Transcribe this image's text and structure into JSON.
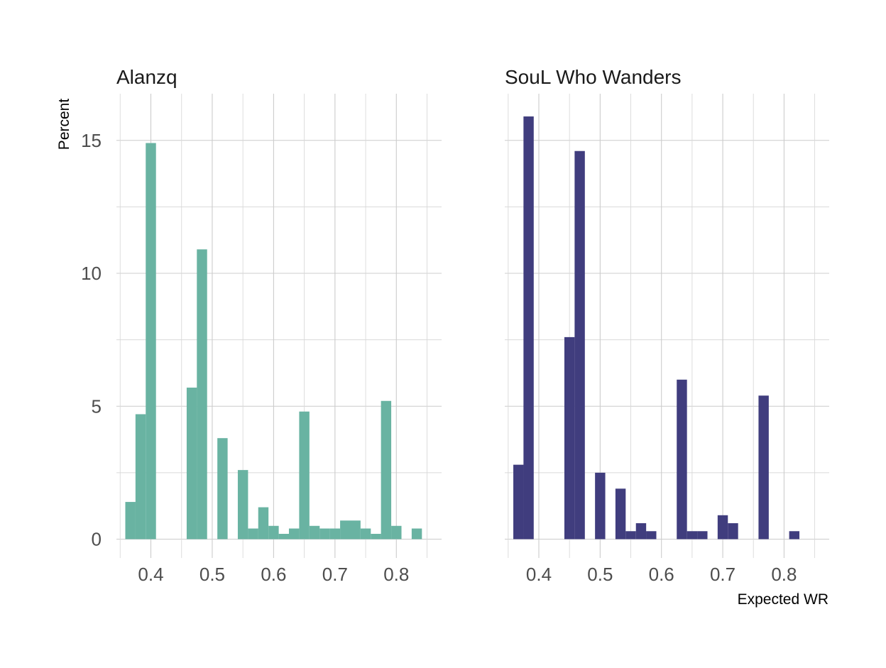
{
  "chart_data": {
    "type": "bar",
    "subtype": "faceted-histogram",
    "xlabel": "Expected WR",
    "ylabel": "Percent",
    "xlim": [
      0.35,
      0.85
    ],
    "ylim": [
      0,
      16
    ],
    "x_ticks": [
      0.4,
      0.5,
      0.6,
      0.7,
      0.8
    ],
    "x_tick_labels": [
      "0.4",
      "0.5",
      "0.6",
      "0.7",
      "0.8"
    ],
    "y_ticks": [
      0,
      5,
      10,
      15
    ],
    "y_tick_labels": [
      "0",
      "5",
      "10",
      "15"
    ],
    "bin_width": 0.0167,
    "grid": true,
    "panels": [
      {
        "title": "Alanzq",
        "color": "#69b3a2",
        "bin_centers": [
          0.3667,
          0.3833,
          0.4,
          0.4167,
          0.4333,
          0.45,
          0.4667,
          0.4833,
          0.5,
          0.5167,
          0.5333,
          0.55,
          0.5667,
          0.5833,
          0.6,
          0.6167,
          0.6333,
          0.65,
          0.6667,
          0.6833,
          0.7,
          0.7167,
          0.7333,
          0.75,
          0.7667,
          0.7833,
          0.8,
          0.8167,
          0.8333,
          0.85
        ],
        "values": [
          1.4,
          4.7,
          14.9,
          0,
          0,
          0,
          5.7,
          10.9,
          0,
          3.8,
          0,
          2.6,
          0.4,
          1.2,
          0.5,
          0.2,
          0.4,
          4.8,
          0.5,
          0.4,
          0.4,
          0.7,
          0.7,
          0.4,
          0.2,
          5.2,
          0.5,
          0,
          0.4,
          0
        ]
      },
      {
        "title": "SouL Who Wanders",
        "color": "#403d7e",
        "bin_centers": [
          0.3667,
          0.3833,
          0.4,
          0.4167,
          0.4333,
          0.45,
          0.4667,
          0.4833,
          0.5,
          0.5167,
          0.5333,
          0.55,
          0.5667,
          0.5833,
          0.6,
          0.6167,
          0.6333,
          0.65,
          0.6667,
          0.6833,
          0.7,
          0.7167,
          0.7333,
          0.75,
          0.7667,
          0.7833,
          0.8,
          0.8167,
          0.8333,
          0.85
        ],
        "values": [
          2.8,
          15.9,
          0,
          0,
          0,
          7.6,
          14.6,
          0,
          2.5,
          0,
          1.9,
          0.3,
          0.6,
          0.3,
          0,
          0,
          6.0,
          0.3,
          0.3,
          0,
          0.9,
          0.6,
          0,
          0,
          5.4,
          0,
          0,
          0.3,
          0,
          0
        ]
      }
    ]
  }
}
